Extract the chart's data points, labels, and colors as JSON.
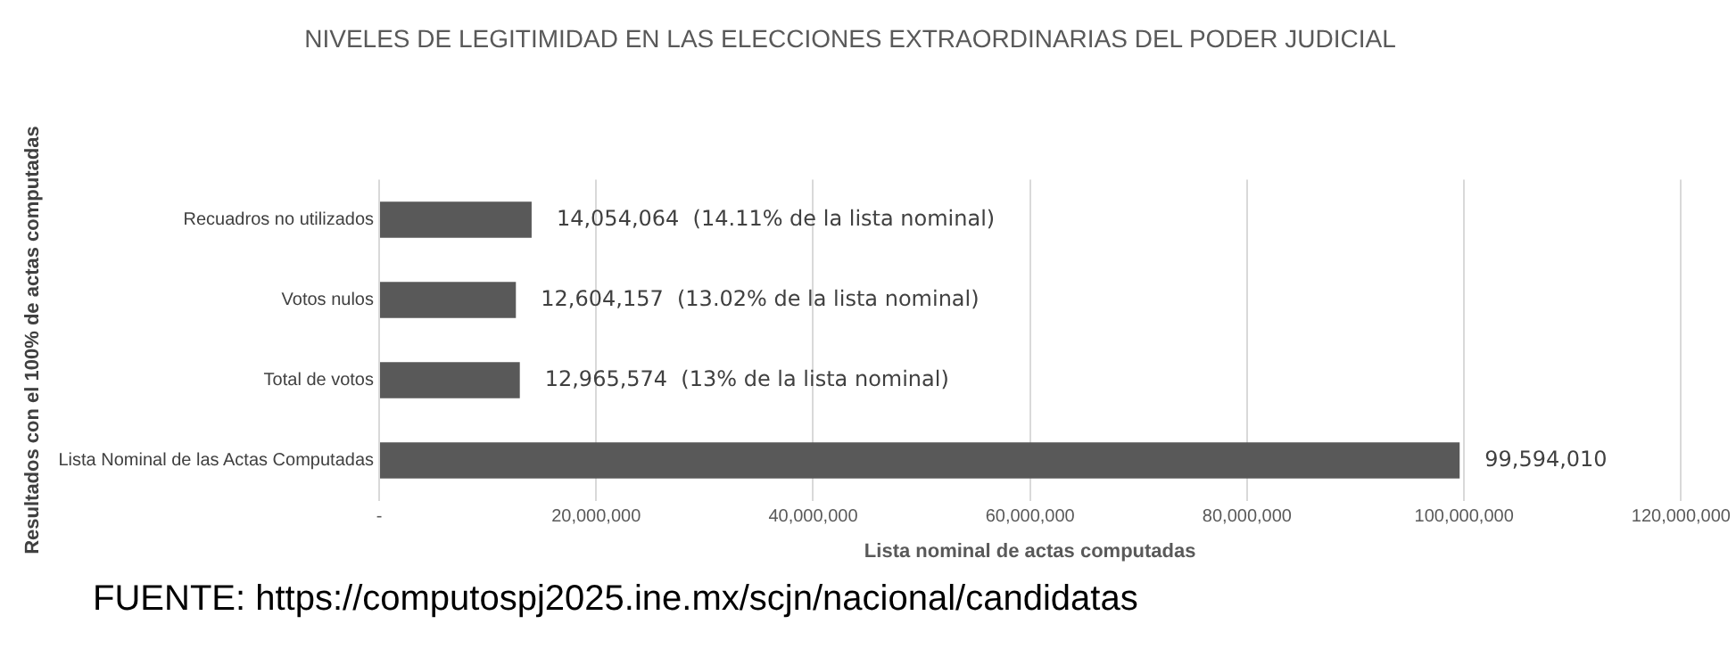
{
  "chart_data": {
    "type": "bar",
    "orientation": "horizontal",
    "title": "NIVELES DE LEGITIMIDAD EN LAS ELECCIONES EXTRAORDINARIAS DEL PODER JUDICIAL",
    "xlabel": "Lista nominal de actas computadas",
    "ylabel": "Resultados con el 100% de actas computadas",
    "categories": [
      "Recuadros no utilizados",
      "Votos nulos",
      "Total de votos",
      "Lista Nominal de las Actas Computadas"
    ],
    "values": [
      14054064,
      12604157,
      12965574,
      99594010
    ],
    "value_labels": [
      "14,054,064  (14.11% de la lista nominal)",
      "12,604,157  (13.02% de la lista nominal)",
      "12,965,574  (13% de la lista nominal)",
      "99,594,010"
    ],
    "color": "#595959",
    "xlim": [
      0,
      120000000
    ],
    "xticks": [
      {
        "value": 0,
        "label": "-"
      },
      {
        "value": 20000000,
        "label": "20,000,000"
      },
      {
        "value": 40000000,
        "label": "40,000,000"
      },
      {
        "value": 60000000,
        "label": "60,000,000"
      },
      {
        "value": 80000000,
        "label": "80,000,000"
      },
      {
        "value": 100000000,
        "label": "100,000,000"
      },
      {
        "value": 120000000,
        "label": "120,000,000"
      }
    ],
    "grid": "x",
    "legend": false,
    "annotations": [
      "FUENTE: https://computospj2025.ine.mx/scjn/nacional/candidatas"
    ]
  }
}
